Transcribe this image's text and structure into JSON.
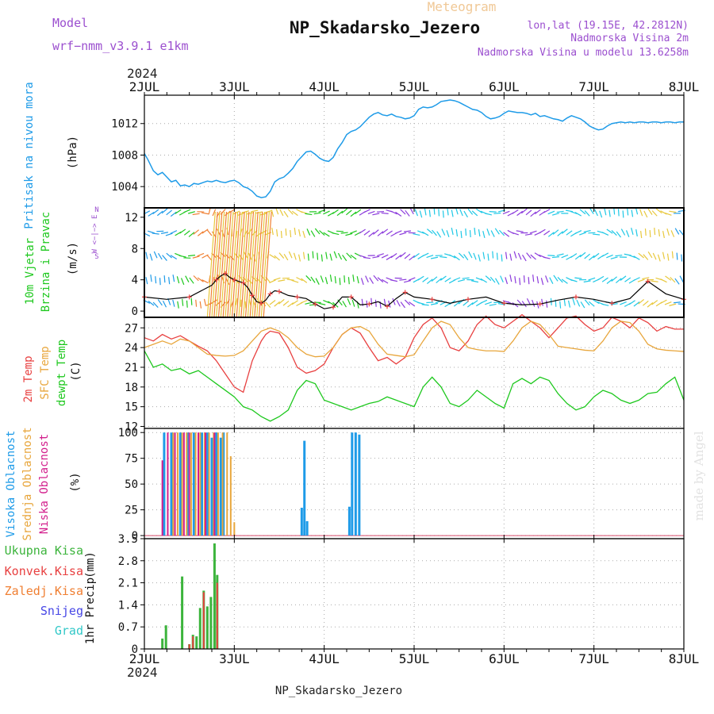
{
  "header": {
    "model_label": "Model",
    "model_name": "wrf−nmm_v3.9.1  e1km",
    "meteogram_label": "Meteogram",
    "station_title": "NP_Skadarsko_Jezero",
    "lonlat": "lon,lat (19.15E, 42.2812N)",
    "altitude": "Nadmorska Visina 2m",
    "model_altitude": "Nadmorska Visina u modelu 13.6258m",
    "year_top": "2024",
    "year_bottom": "2024",
    "footer": "NP_Skadarsko_Jezero",
    "credit": "made by Angel"
  },
  "colors": {
    "pressure": "#1e9be8",
    "wind_speed": "#000000",
    "temp2m": "#e84040",
    "sfc": "#e8a63c",
    "dew": "#1ec81e",
    "high_cloud": "#1e9be8",
    "mid_cloud": "#e8a63c",
    "low_cloud": "#d21e8c",
    "total_precip": "#3cb43c",
    "convective": "#e84040",
    "frozen": "#f07f32",
    "snow": "#4646e6",
    "graupel": "#32c8c8",
    "model": "#9b4fcf"
  },
  "chart_data": [
    {
      "type": "line",
      "name": "pressure",
      "ylabel": "Pritisak na nivou mora",
      "unit": "(hPa)",
      "x_ticks": [
        "2JUL",
        "3JUL",
        "4JUL",
        "5JUL",
        "6JUL",
        "7JUL",
        "8JUL"
      ],
      "ylim": [
        1001.3,
        1015.6
      ],
      "y_ticks": [
        1004,
        1008,
        1012
      ],
      "grid": true,
      "series": [
        {
          "x": [
            0,
            0.04,
            0.1,
            0.15,
            0.2,
            0.25,
            0.3,
            0.35,
            0.4,
            0.45,
            0.5,
            0.55,
            0.6,
            0.65,
            0.7,
            0.75,
            0.8,
            0.85,
            0.9,
            0.95,
            1.0,
            1.05,
            1.1,
            1.15,
            1.2,
            1.25,
            1.3,
            1.35,
            1.4,
            1.45,
            1.5,
            1.55,
            1.6,
            1.65,
            1.7,
            1.75,
            1.8,
            1.85,
            1.9,
            1.95,
            2.0,
            2.05,
            2.1,
            2.15,
            2.2,
            2.25,
            2.3,
            2.35,
            2.4,
            2.45,
            2.5,
            2.55,
            2.6,
            2.65,
            2.7,
            2.75,
            2.8,
            2.85,
            2.9,
            2.95,
            3.0,
            3.05,
            3.1,
            3.15,
            3.2,
            3.25,
            3.3,
            3.35,
            3.4,
            3.45,
            3.5,
            3.55,
            3.6,
            3.65,
            3.7,
            3.75,
            3.8,
            3.85,
            3.9,
            3.95,
            4.0,
            4.05,
            4.1,
            4.15,
            4.2,
            4.25,
            4.3,
            4.35,
            4.4,
            4.45,
            4.5,
            4.55,
            4.6,
            4.65,
            4.7,
            4.75,
            4.8,
            4.85,
            4.9,
            4.95,
            5.0,
            5.05,
            5.1,
            5.15,
            5.2,
            5.25,
            5.3,
            5.35,
            5.4,
            5.45,
            5.5,
            5.55,
            5.6,
            5.65,
            5.7,
            5.75,
            5.8,
            5.85,
            5.9,
            5.95,
            6.0
          ],
          "y": [
            1008.2,
            1007.4,
            1006.0,
            1005.5,
            1005.8,
            1005.2,
            1004.6,
            1004.8,
            1004.1,
            1004.2,
            1004.0,
            1004.4,
            1004.3,
            1004.5,
            1004.7,
            1004.6,
            1004.8,
            1004.6,
            1004.5,
            1004.7,
            1004.8,
            1004.5,
            1004.0,
            1003.8,
            1003.4,
            1002.8,
            1002.6,
            1002.7,
            1003.4,
            1004.6,
            1005.0,
            1005.2,
            1005.7,
            1006.3,
            1007.2,
            1007.8,
            1008.4,
            1008.5,
            1008.1,
            1007.6,
            1007.3,
            1007.2,
            1007.7,
            1008.8,
            1009.6,
            1010.6,
            1011.0,
            1011.2,
            1011.6,
            1012.2,
            1012.8,
            1013.2,
            1013.4,
            1013.1,
            1013.0,
            1013.2,
            1012.9,
            1012.8,
            1012.6,
            1012.7,
            1013.0,
            1013.8,
            1014.1,
            1014.0,
            1014.1,
            1014.4,
            1014.8,
            1014.9,
            1015.0,
            1014.9,
            1014.7,
            1014.4,
            1014.1,
            1013.8,
            1013.7,
            1013.4,
            1012.9,
            1012.6,
            1012.7,
            1012.9,
            1013.3,
            1013.6,
            1013.5,
            1013.4,
            1013.4,
            1013.3,
            1013.1,
            1013.3,
            1012.9,
            1013.0,
            1012.8,
            1012.6,
            1012.5,
            1012.3,
            1012.7,
            1013.0,
            1012.8,
            1012.6,
            1012.2,
            1011.7,
            1011.4,
            1011.2,
            1011.3,
            1011.7,
            1012.0,
            1012.1,
            1012.2,
            1012.1,
            1012.2,
            1012.1,
            1012.2,
            1012.2,
            1012.1,
            1012.2,
            1012.2,
            1012.1,
            1012.2,
            1012.2,
            1012.1,
            1012.2,
            1012.2
          ]
        }
      ]
    },
    {
      "type": "line",
      "name": "wind",
      "ylabel": [
        "10m Vjetar",
        "Brzina i Pravac"
      ],
      "unit": "(m/s)",
      "compass_label": "W <−|−> E",
      "compass_n": "N",
      "compass_s": "S",
      "ylim": [
        -0.8,
        13.2
      ],
      "y_ticks": [
        0,
        4,
        8,
        12
      ],
      "grid": true,
      "series": [
        {
          "name": "speed",
          "x": [
            0,
            0.25,
            0.5,
            0.75,
            0.8,
            0.85,
            0.9,
            0.95,
            1.0,
            1.05,
            1.1,
            1.15,
            1.2,
            1.25,
            1.3,
            1.35,
            1.4,
            1.45,
            1.5,
            1.6,
            1.7,
            1.8,
            1.9,
            2.0,
            2.1,
            2.2,
            2.3,
            2.4,
            2.5,
            2.6,
            2.7,
            2.8,
            2.9,
            3.0,
            3.2,
            3.4,
            3.6,
            3.8,
            4.0,
            4.2,
            4.4,
            4.6,
            4.8,
            5.0,
            5.2,
            5.4,
            5.6,
            5.8,
            6.0
          ],
          "y": [
            1.8,
            1.5,
            1.8,
            3.3,
            4.0,
            4.5,
            4.8,
            4.3,
            4.0,
            3.8,
            3.6,
            3.0,
            2.0,
            1.2,
            1.0,
            1.4,
            2.2,
            2.6,
            2.5,
            2.0,
            1.8,
            1.6,
            0.9,
            0.3,
            0.5,
            1.8,
            1.8,
            0.8,
            0.9,
            1.2,
            0.6,
            1.6,
            2.4,
            1.8,
            1.5,
            1.0,
            1.5,
            1.8,
            1.0,
            0.8,
            0.9,
            1.4,
            1.8,
            1.5,
            1.0,
            1.6,
            3.8,
            2.2,
            1.5
          ]
        }
      ]
    },
    {
      "type": "line",
      "name": "temperature",
      "ylabel": [
        "2m Temp",
        "SFC Temp",
        "dewpt Temp"
      ],
      "unit": "(C)",
      "ylim": [
        11.7,
        28.6
      ],
      "y_ticks": [
        12,
        15,
        18,
        21,
        24,
        27
      ],
      "grid": true,
      "series": [
        {
          "name": "2m Temp",
          "x": [
            0,
            0.1,
            0.2,
            0.3,
            0.4,
            0.5,
            0.6,
            0.7,
            0.8,
            0.9,
            1.0,
            1.1,
            1.2,
            1.3,
            1.35,
            1.4,
            1.5,
            1.6,
            1.7,
            1.8,
            1.9,
            2.0,
            2.1,
            2.2,
            2.3,
            2.4,
            2.5,
            2.6,
            2.7,
            2.8,
            2.9,
            3.0,
            3.1,
            3.2,
            3.3,
            3.4,
            3.5,
            3.6,
            3.7,
            3.8,
            3.9,
            4.0,
            4.1,
            4.2,
            4.3,
            4.4,
            4.5,
            4.6,
            4.7,
            4.8,
            4.9,
            5.0,
            5.1,
            5.2,
            5.3,
            5.4,
            5.5,
            5.6,
            5.7,
            5.8,
            5.9,
            6.0
          ],
          "y": [
            25.5,
            25.0,
            26.0,
            25.3,
            25.8,
            25.0,
            24.2,
            23.5,
            22.0,
            20.0,
            18.0,
            17.2,
            22.0,
            25.0,
            26.0,
            26.5,
            26.2,
            24.0,
            21.0,
            20.1,
            20.5,
            21.5,
            24.0,
            26.0,
            27.0,
            26.2,
            24.0,
            22.0,
            22.5,
            21.5,
            22.5,
            25.5,
            27.5,
            28.5,
            27.0,
            24.0,
            23.5,
            25.0,
            27.5,
            28.8,
            27.5,
            27.0,
            28.0,
            29.0,
            28.0,
            27.0,
            25.5,
            27.0,
            28.5,
            28.8,
            27.5,
            26.5,
            27.0,
            28.6,
            28.0,
            27.0,
            28.5,
            27.8,
            26.5,
            27.2,
            26.8,
            26.8
          ]
        },
        {
          "name": "SFC Temp",
          "x": [
            0,
            0.1,
            0.2,
            0.3,
            0.4,
            0.5,
            0.6,
            0.7,
            0.8,
            0.9,
            1.0,
            1.1,
            1.2,
            1.3,
            1.4,
            1.5,
            1.6,
            1.7,
            1.8,
            1.9,
            2.0,
            2.1,
            2.2,
            2.3,
            2.4,
            2.5,
            2.6,
            2.7,
            2.8,
            2.9,
            3.0,
            3.1,
            3.2,
            3.3,
            3.4,
            3.5,
            3.6,
            3.7,
            3.8,
            3.9,
            4.0,
            4.1,
            4.2,
            4.3,
            4.4,
            4.5,
            4.6,
            4.7,
            4.8,
            4.9,
            5.0,
            5.1,
            5.2,
            5.3,
            5.4,
            5.5,
            5.6,
            5.7,
            5.8,
            5.9,
            6.0
          ],
          "y": [
            24.0,
            24.5,
            25.0,
            24.5,
            25.3,
            25.0,
            24.0,
            23.0,
            22.8,
            22.7,
            22.8,
            23.5,
            25.0,
            26.5,
            27.0,
            26.5,
            25.5,
            24.0,
            23.0,
            22.6,
            22.7,
            24.0,
            26.0,
            27.0,
            27.2,
            26.5,
            24.5,
            23.0,
            22.8,
            22.6,
            22.9,
            25.0,
            27.0,
            28.0,
            27.5,
            25.5,
            24.0,
            23.7,
            23.5,
            23.5,
            23.4,
            25.0,
            27.0,
            28.0,
            27.5,
            26.0,
            24.2,
            24.0,
            23.8,
            23.6,
            23.5,
            25.0,
            27.0,
            28.0,
            27.8,
            26.5,
            24.5,
            23.8,
            23.6,
            23.5,
            23.4
          ]
        },
        {
          "name": "dewpt Temp",
          "x": [
            0,
            0.1,
            0.2,
            0.3,
            0.4,
            0.5,
            0.6,
            0.7,
            0.8,
            0.9,
            1.0,
            1.1,
            1.2,
            1.3,
            1.4,
            1.5,
            1.6,
            1.7,
            1.8,
            1.9,
            2.0,
            2.1,
            2.2,
            2.3,
            2.4,
            2.5,
            2.6,
            2.7,
            2.8,
            2.9,
            3.0,
            3.1,
            3.2,
            3.3,
            3.4,
            3.5,
            3.6,
            3.7,
            3.8,
            3.9,
            4.0,
            4.1,
            4.2,
            4.3,
            4.4,
            4.5,
            4.6,
            4.7,
            4.8,
            4.9,
            5.0,
            5.1,
            5.2,
            5.3,
            5.4,
            5.5,
            5.6,
            5.7,
            5.8,
            5.9,
            6.0
          ],
          "y": [
            23.5,
            21.0,
            21.5,
            20.5,
            20.8,
            20.0,
            20.5,
            19.5,
            18.5,
            17.5,
            16.5,
            15.0,
            14.5,
            13.5,
            12.8,
            13.5,
            14.5,
            17.5,
            19.0,
            18.5,
            16.0,
            15.5,
            15.0,
            14.5,
            15.0,
            15.5,
            15.8,
            16.5,
            16.0,
            15.5,
            15.0,
            18.0,
            19.5,
            18.0,
            15.5,
            15.0,
            16.0,
            17.5,
            16.5,
            15.5,
            14.8,
            18.5,
            19.3,
            18.5,
            19.5,
            19.0,
            17.0,
            15.5,
            14.5,
            15.0,
            16.5,
            17.5,
            17.0,
            16.0,
            15.5,
            16.0,
            17.0,
            17.2,
            18.5,
            19.5,
            16.0
          ]
        }
      ]
    },
    {
      "type": "bar",
      "name": "clouds",
      "ylabel": [
        "Visoka Oblacnost",
        "Srednja Oblacnost",
        "Niska Oblacnost"
      ],
      "unit": "(%)",
      "ylim": [
        -3,
        104
      ],
      "y_ticks": [
        0,
        25,
        50,
        75,
        100
      ],
      "grid": true,
      "series": [
        {
          "name": "Visoka Oblacnost",
          "x": [
            0.22,
            0.3,
            0.4,
            0.48,
            0.55,
            0.64,
            0.7,
            0.75,
            0.8,
            0.85,
            0.88,
            1.75,
            1.78,
            1.81,
            2.28,
            2.31,
            2.35,
            2.39
          ],
          "y": [
            100,
            100,
            100,
            100,
            100,
            100,
            100,
            95,
            100,
            95,
            100,
            27,
            92,
            14,
            28,
            100,
            100,
            98
          ]
        },
        {
          "name": "Srednja Oblacnost",
          "x": [
            0.32,
            0.37,
            0.42,
            0.47,
            0.52,
            0.57,
            0.62,
            0.67,
            0.72,
            0.77,
            0.82,
            0.87,
            0.92,
            0.96,
            1.0
          ],
          "y": [
            100,
            100,
            100,
            100,
            100,
            100,
            100,
            100,
            100,
            100,
            100,
            100,
            100,
            77,
            13
          ]
        },
        {
          "name": "Niska Oblacnost",
          "x": [
            0.2,
            0.26,
            0.34,
            0.44,
            0.5,
            0.6,
            0.68,
            0.78
          ],
          "y": [
            73,
            100,
            100,
            100,
            100,
            100,
            100,
            100
          ]
        }
      ]
    },
    {
      "type": "bar",
      "name": "precipitation",
      "ylabel": "1hr Precip",
      "unit": "(mm)",
      "legend": [
        "Ukupna Kisa",
        "Konvek.Kisa",
        "Zaledj.Kisa",
        "Snijeg",
        "Grad"
      ],
      "ylim": [
        0,
        3.5
      ],
      "y_ticks": [
        0,
        0.7,
        1.4,
        2.1,
        2.8,
        3.5
      ],
      "grid": true,
      "series": [
        {
          "name": "Ukupna Kisa",
          "x": [
            0.2,
            0.24,
            0.42,
            0.5,
            0.54,
            0.58,
            0.62,
            0.66,
            0.7,
            0.74,
            0.78,
            0.81
          ],
          "y": [
            0.33,
            0.75,
            2.3,
            0.15,
            0.45,
            0.4,
            1.3,
            1.85,
            1.35,
            1.65,
            3.35,
            2.35
          ]
        },
        {
          "name": "Konvek.Kisa",
          "x": [
            0.5,
            0.54,
            0.66,
            0.81
          ],
          "y": [
            0.15,
            0.4,
            1.8,
            2.1
          ]
        }
      ]
    }
  ]
}
